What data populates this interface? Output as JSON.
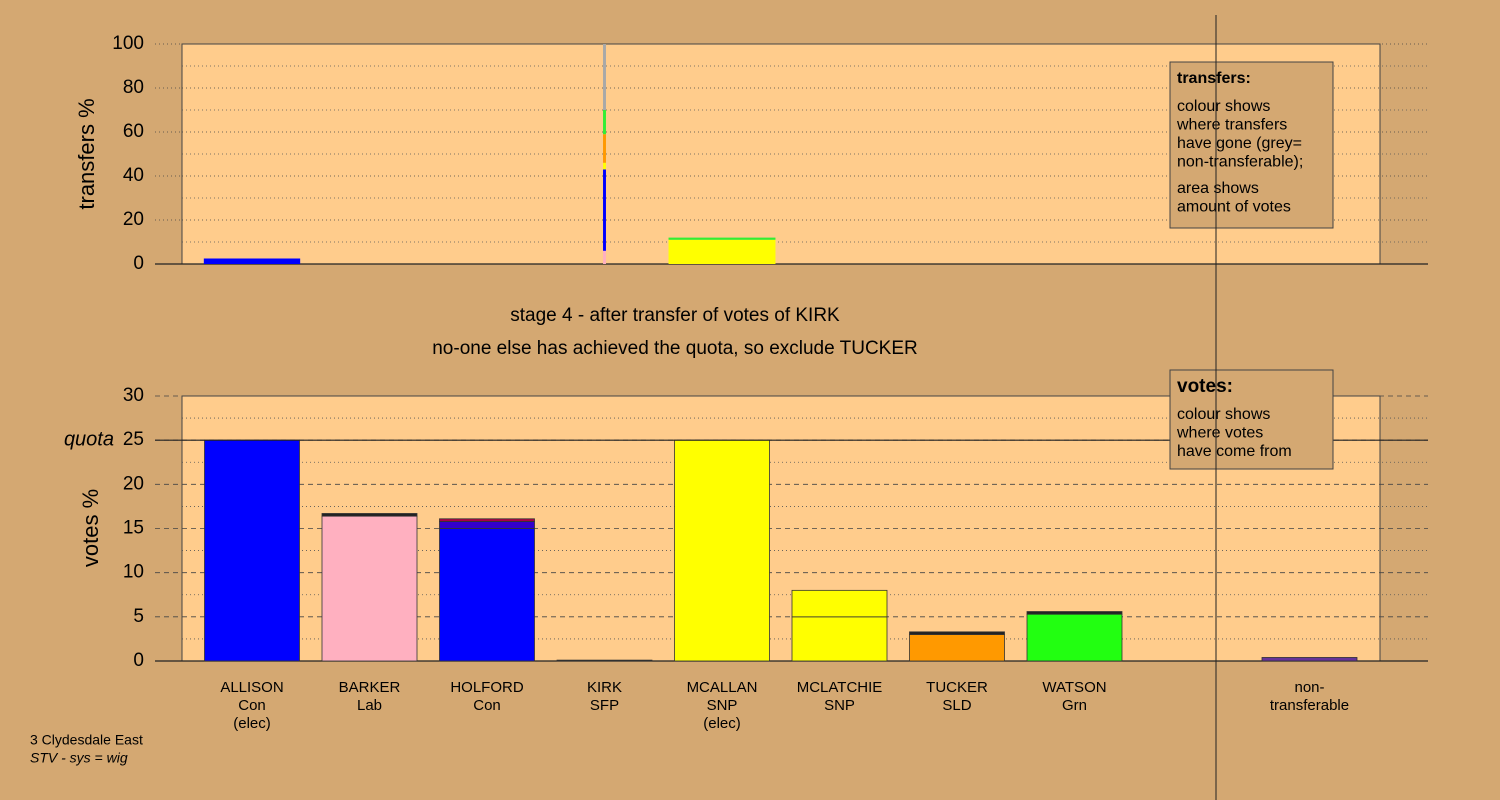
{
  "chart_data": [
    {
      "type": "bar",
      "ylabel": "transfers %",
      "ylim": [
        0,
        100
      ],
      "yticks": [
        0,
        20,
        40,
        60,
        80,
        100
      ],
      "minor_yticks": [
        10,
        30,
        50,
        70,
        90
      ],
      "widths": [
        0.82,
        0,
        0,
        0.025,
        0.91,
        0,
        0,
        0,
        0
      ],
      "stacks": [
        [
          {
            "color": "#0000ff",
            "value": 2.5
          }
        ],
        [],
        [],
        [
          {
            "color": "#ffb0c0",
            "value": 6
          },
          {
            "color": "#0000ff",
            "value": 37
          },
          {
            "color": "#ffff00",
            "value": 3
          },
          {
            "color": "#ff9900",
            "value": 13
          },
          {
            "color": "#33ee33",
            "value": 11
          },
          {
            "color": "#a8a8a8",
            "value": 30
          }
        ],
        [
          {
            "color": "#ffff00",
            "value": 11
          },
          {
            "color": "#33ee33",
            "value": 1
          }
        ],
        [],
        [],
        [],
        []
      ],
      "note": {
        "title": "transfers:",
        "lines": [
          "colour shows",
          "where transfers",
          "have gone (grey=",
          "non-transferable);",
          "area shows",
          "amount of votes"
        ]
      }
    },
    {
      "type": "bar",
      "title": "stage 4 - after transfer of votes of KIRK",
      "subtitle": "no-one else has achieved the quota, so exclude TUCKER",
      "ylabel": "votes %",
      "ylim": [
        0,
        30
      ],
      "yticks": [
        0,
        5,
        10,
        15,
        20,
        25,
        30
      ],
      "minor_yticks": [
        2.5,
        7.5,
        12.5,
        17.5,
        22.5,
        27.5
      ],
      "quota": 25,
      "quota_label": "quota",
      "categories": [
        [
          "ALLISON",
          "Con",
          "(elec)"
        ],
        [
          "BARKER",
          "Lab"
        ],
        [
          "HOLFORD",
          "Con"
        ],
        [
          "KIRK",
          "SFP"
        ],
        [
          "MCALLAN",
          "SNP",
          "(elec)"
        ],
        [
          "MCLATCHIE",
          "SNP"
        ],
        [
          "TUCKER",
          "SLD"
        ],
        [
          "WATSON",
          "Grn"
        ],
        [
          "non-",
          "transferable"
        ]
      ],
      "stacks": [
        [
          {
            "color": "#0000ff",
            "value": 25
          }
        ],
        [
          {
            "color": "#ffb0c0",
            "value": 16.4
          },
          {
            "color": "#222222",
            "value": 0.3
          }
        ],
        [
          {
            "color": "#0000ff",
            "value": 15
          },
          {
            "color": "#3300cc",
            "value": 0.8
          },
          {
            "color": "#aa0044",
            "value": 0.3
          }
        ],
        [
          {
            "color": "#222222",
            "value": 0.1
          }
        ],
        [
          {
            "color": "#ffff00",
            "value": 25
          }
        ],
        [
          {
            "color": "#ffff00",
            "value": 5
          },
          {
            "color": "#ffff00",
            "value": 3
          }
        ],
        [
          {
            "color": "#ff9900",
            "value": 3
          },
          {
            "color": "#222222",
            "value": 0.3
          }
        ],
        [
          {
            "color": "#22ff11",
            "value": 5.3
          },
          {
            "color": "#222222",
            "value": 0.3
          }
        ],
        [
          {
            "color": "#663399",
            "value": 0.4
          }
        ]
      ],
      "note": {
        "title": "votes:",
        "lines": [
          "colour shows",
          "where votes",
          "have come from"
        ]
      },
      "footer": [
        "3 Clydesdale East",
        "STV - sys = wig"
      ]
    }
  ]
}
